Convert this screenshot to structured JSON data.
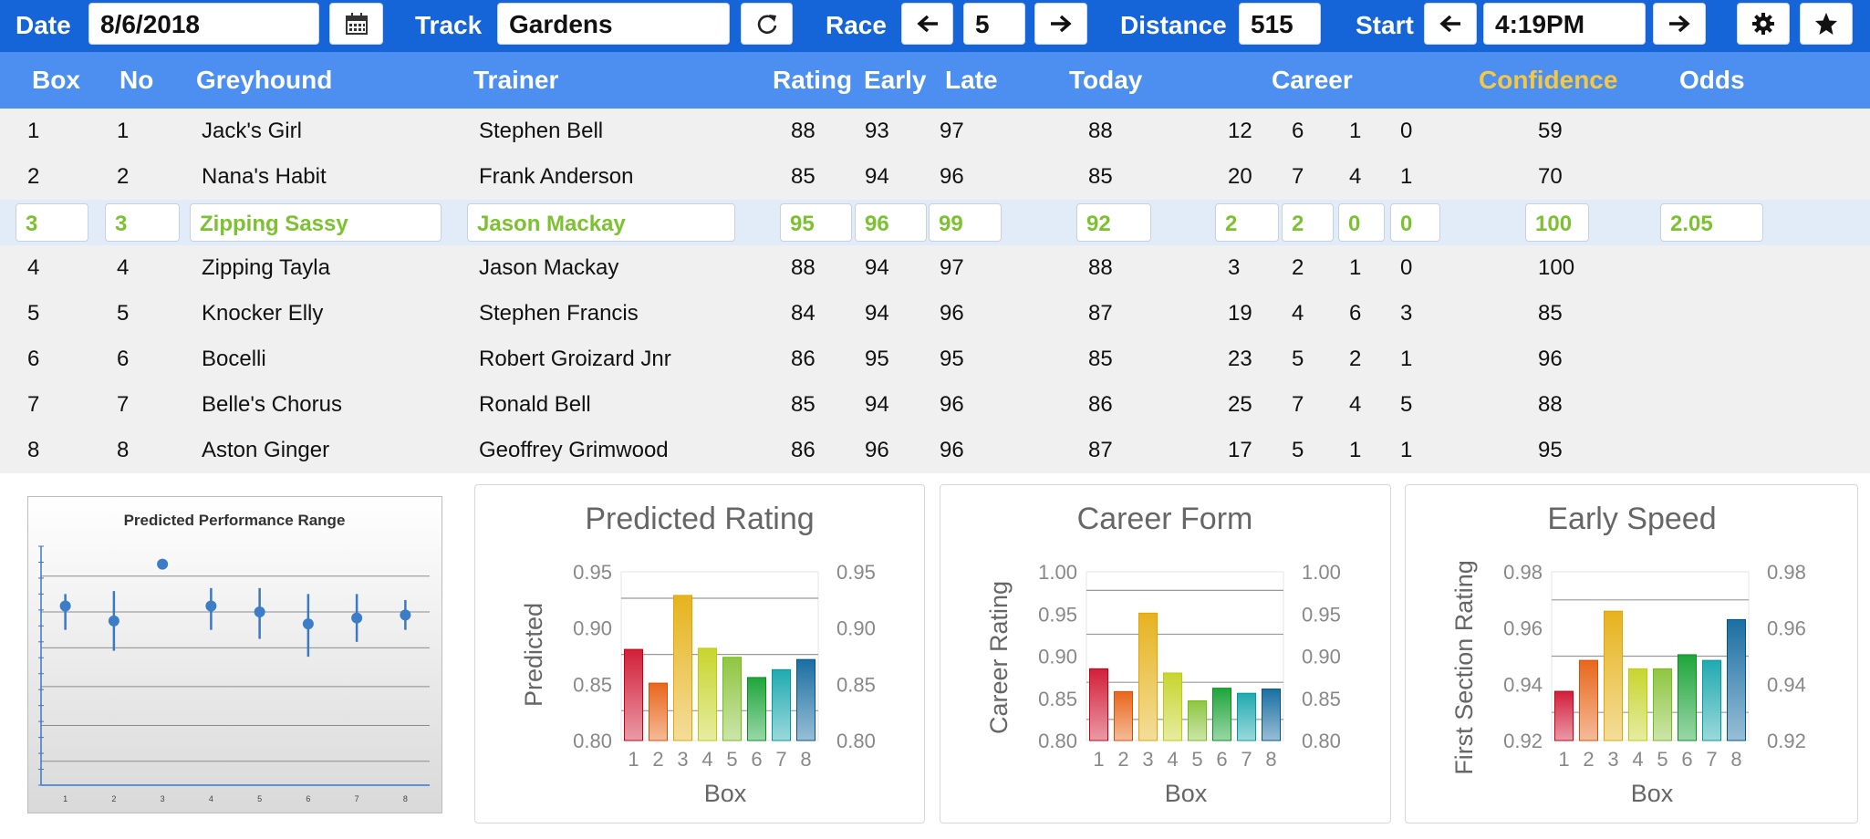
{
  "toolbar": {
    "date_label": "Date",
    "date_value": "8/6/2018",
    "track_label": "Track",
    "track_value": "Gardens",
    "race_label": "Race",
    "race_value": "5",
    "distance_label": "Distance",
    "distance_value": "515",
    "start_label": "Start",
    "start_value": "4:19PM",
    "icons": [
      "calendar-icon",
      "refresh-icon",
      "arrow-left-icon",
      "arrow-right-icon",
      "gear-icon",
      "star-icon"
    ]
  },
  "table": {
    "headers": {
      "box": "Box",
      "no": "No",
      "greyhound": "Greyhound",
      "trainer": "Trainer",
      "rating": "Rating",
      "early": "Early",
      "late": "Late",
      "today": "Today",
      "career": "Career",
      "confidence": "Confidence",
      "odds": "Odds"
    },
    "rows": [
      {
        "box": "1",
        "no": "1",
        "greyhound": "Jack's Girl",
        "trainer": "Stephen Bell",
        "rating": "88",
        "early": "93",
        "late": "97",
        "today": "88",
        "career": [
          "12",
          "6",
          "1",
          "0"
        ],
        "confidence": "59",
        "odds": ""
      },
      {
        "box": "2",
        "no": "2",
        "greyhound": "Nana's Habit",
        "trainer": "Frank Anderson",
        "rating": "85",
        "early": "94",
        "late": "96",
        "today": "85",
        "career": [
          "20",
          "7",
          "4",
          "1"
        ],
        "confidence": "70",
        "odds": ""
      },
      {
        "box": "3",
        "no": "3",
        "greyhound": "Zipping Sassy",
        "trainer": "Jason Mackay",
        "rating": "95",
        "early": "96",
        "late": "99",
        "today": "92",
        "career": [
          "2",
          "2",
          "0",
          "0"
        ],
        "confidence": "100",
        "odds": "2.05"
      },
      {
        "box": "4",
        "no": "4",
        "greyhound": "Zipping Tayla",
        "trainer": "Jason Mackay",
        "rating": "88",
        "early": "94",
        "late": "97",
        "today": "88",
        "career": [
          "3",
          "2",
          "1",
          "0"
        ],
        "confidence": "100",
        "odds": ""
      },
      {
        "box": "5",
        "no": "5",
        "greyhound": "Knocker Elly",
        "trainer": "Stephen Francis",
        "rating": "84",
        "early": "94",
        "late": "96",
        "today": "87",
        "career": [
          "19",
          "4",
          "6",
          "3"
        ],
        "confidence": "85",
        "odds": ""
      },
      {
        "box": "6",
        "no": "6",
        "greyhound": "Bocelli",
        "trainer": "Robert Groizard Jnr",
        "rating": "86",
        "early": "95",
        "late": "95",
        "today": "85",
        "career": [
          "23",
          "5",
          "2",
          "1"
        ],
        "confidence": "96",
        "odds": ""
      },
      {
        "box": "7",
        "no": "7",
        "greyhound": "Belle's Chorus",
        "trainer": "Ronald Bell",
        "rating": "85",
        "early": "94",
        "late": "96",
        "today": "86",
        "career": [
          "25",
          "7",
          "4",
          "5"
        ],
        "confidence": "88",
        "odds": ""
      },
      {
        "box": "8",
        "no": "8",
        "greyhound": "Aston Ginger",
        "trainer": "Geoffrey Grimwood",
        "rating": "86",
        "early": "96",
        "late": "96",
        "today": "87",
        "career": [
          "17",
          "5",
          "1",
          "1"
        ],
        "confidence": "95",
        "odds": ""
      }
    ],
    "selected_row": 2
  },
  "colors": {
    "toolbar_bg": "#1565d8",
    "header_bg": "#4d8ff0",
    "confidence_header": "#f5c842",
    "selected_text": "#7cc230",
    "box_colors": [
      "#d11f3a",
      "#e8671c",
      "#e6b31e",
      "#c8d52e",
      "#8ec641",
      "#1fa53b",
      "#20aab0",
      "#1b6fa3"
    ]
  },
  "chart_data": [
    {
      "type": "scatter",
      "title": "Predicted Performance Range",
      "x": [
        1,
        2,
        3,
        4,
        5,
        6,
        7,
        8
      ],
      "values": [
        0.88,
        0.875,
        0.894,
        0.88,
        0.878,
        0.874,
        0.876,
        0.877
      ],
      "ranges": [
        [
          0.872,
          0.884
        ],
        [
          0.865,
          0.885
        ],
        [
          0.894,
          0.894
        ],
        [
          0.872,
          0.886
        ],
        [
          0.869,
          0.886
        ],
        [
          0.863,
          0.884
        ],
        [
          0.868,
          0.884
        ],
        [
          0.872,
          0.882
        ]
      ],
      "ylim": [
        0.82,
        0.9
      ],
      "grid": true
    },
    {
      "type": "bar",
      "title": "Predicted Rating",
      "categories": [
        "1",
        "2",
        "3",
        "4",
        "5",
        "6",
        "7",
        "8"
      ],
      "values": [
        0.881,
        0.851,
        0.929,
        0.882,
        0.874,
        0.856,
        0.863,
        0.872
      ],
      "xlabel": "Box",
      "ylabel": "Predicted",
      "ylim": [
        0.8,
        0.95
      ],
      "yticks": [
        "0.80",
        "0.85",
        "0.90",
        "0.95"
      ],
      "gridlines": [
        0.8265,
        0.8765,
        0.9265
      ],
      "grid": true
    },
    {
      "type": "bar",
      "title": "Career Form",
      "categories": [
        "1",
        "2",
        "3",
        "4",
        "5",
        "6",
        "7",
        "8"
      ],
      "values": [
        0.885,
        0.858,
        0.951,
        0.88,
        0.847,
        0.862,
        0.856,
        0.861
      ],
      "xlabel": "Box",
      "ylabel": "Career Rating",
      "ylim": [
        0.8,
        1.0
      ],
      "yticks": [
        "0.80",
        "0.85",
        "0.90",
        "0.95",
        "1.00"
      ],
      "gridlines": [
        0.825,
        0.869,
        0.926,
        0.978
      ],
      "grid": true
    },
    {
      "type": "bar",
      "title": "Early Speed",
      "categories": [
        "1",
        "2",
        "3",
        "4",
        "5",
        "6",
        "7",
        "8"
      ],
      "values": [
        0.9375,
        0.9485,
        0.966,
        0.9455,
        0.9455,
        0.9505,
        0.9485,
        0.963
      ],
      "xlabel": "Box",
      "ylabel": "First Section Rating",
      "ylim": [
        0.92,
        0.98
      ],
      "yticks": [
        "0.92",
        "0.94",
        "0.96",
        "0.98"
      ],
      "gridlines": [
        0.93,
        0.95,
        0.97
      ],
      "grid": true
    }
  ]
}
